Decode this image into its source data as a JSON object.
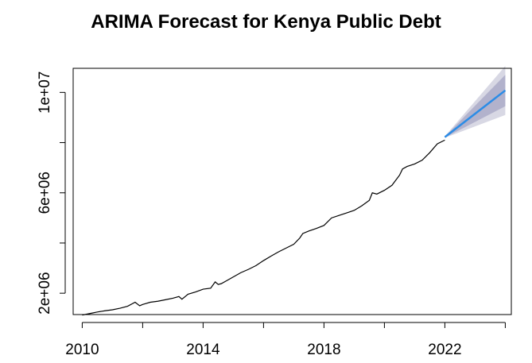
{
  "chart_data": {
    "type": "line",
    "title": "ARIMA Forecast for Kenya Public Debt",
    "xlabel": "",
    "ylabel": "",
    "xlim": [
      2009.7,
      2024.2
    ],
    "ylim": [
      1150000,
      10960000
    ],
    "x_ticks": [
      {
        "value": 2010,
        "label": "2010"
      },
      {
        "value": 2012,
        "label": ""
      },
      {
        "value": 2014,
        "label": "2014"
      },
      {
        "value": 2016,
        "label": ""
      },
      {
        "value": 2018,
        "label": "2018"
      },
      {
        "value": 2020,
        "label": ""
      },
      {
        "value": 2022,
        "label": "2022"
      },
      {
        "value": 2024,
        "label": ""
      }
    ],
    "y_ticks": [
      {
        "value": 2000000,
        "label": "2e+06"
      },
      {
        "value": 4000000,
        "label": ""
      },
      {
        "value": 6000000,
        "label": "6e+06"
      },
      {
        "value": 8000000,
        "label": ""
      },
      {
        "value": 10000000,
        "label": "1e+07"
      }
    ],
    "grid": false,
    "legend": "none",
    "colors": {
      "actual": "#000000",
      "forecast": "#2b8ce6",
      "ci95": "#d8d8e4",
      "ci80": "#b2b2cc"
    },
    "series": [
      {
        "role": "actual",
        "x": [
          2010.0,
          2010.25,
          2010.5,
          2010.75,
          2011.0,
          2011.25,
          2011.5,
          2011.75,
          2011.9,
          2012.0,
          2012.25,
          2012.5,
          2012.75,
          2013.0,
          2013.2,
          2013.3,
          2013.5,
          2013.75,
          2014.0,
          2014.25,
          2014.4,
          2014.5,
          2014.6,
          2014.75,
          2015.0,
          2015.25,
          2015.5,
          2015.75,
          2016.0,
          2016.25,
          2016.5,
          2016.75,
          2017.0,
          2017.2,
          2017.3,
          2017.5,
          2017.75,
          2018.0,
          2018.25,
          2018.5,
          2018.75,
          2019.0,
          2019.25,
          2019.5,
          2019.6,
          2019.75,
          2020.0,
          2020.25,
          2020.5,
          2020.6,
          2020.75,
          2021.0,
          2021.25,
          2021.5,
          2021.75,
          2022.0
        ],
        "values": [
          1130000,
          1190000,
          1250000,
          1300000,
          1340000,
          1400000,
          1480000,
          1640000,
          1500000,
          1550000,
          1640000,
          1680000,
          1740000,
          1800000,
          1870000,
          1760000,
          1960000,
          2050000,
          2160000,
          2200000,
          2450000,
          2350000,
          2380000,
          2480000,
          2650000,
          2820000,
          2950000,
          3100000,
          3300000,
          3480000,
          3650000,
          3800000,
          3950000,
          4200000,
          4380000,
          4480000,
          4580000,
          4700000,
          5000000,
          5100000,
          5200000,
          5300000,
          5480000,
          5700000,
          6000000,
          5950000,
          6100000,
          6300000,
          6700000,
          6950000,
          7050000,
          7150000,
          7300000,
          7600000,
          7950000,
          8100000
        ]
      },
      {
        "role": "forecast",
        "x": [
          2022.0,
          2024.0
        ],
        "values": [
          8220000,
          10080000
        ],
        "ci80_upper": [
          8240000,
          10700000
        ],
        "ci80_lower": [
          8200000,
          9450000
        ],
        "ci95_upper": [
          8250000,
          11050000
        ],
        "ci95_lower": [
          8190000,
          9100000
        ]
      }
    ]
  }
}
